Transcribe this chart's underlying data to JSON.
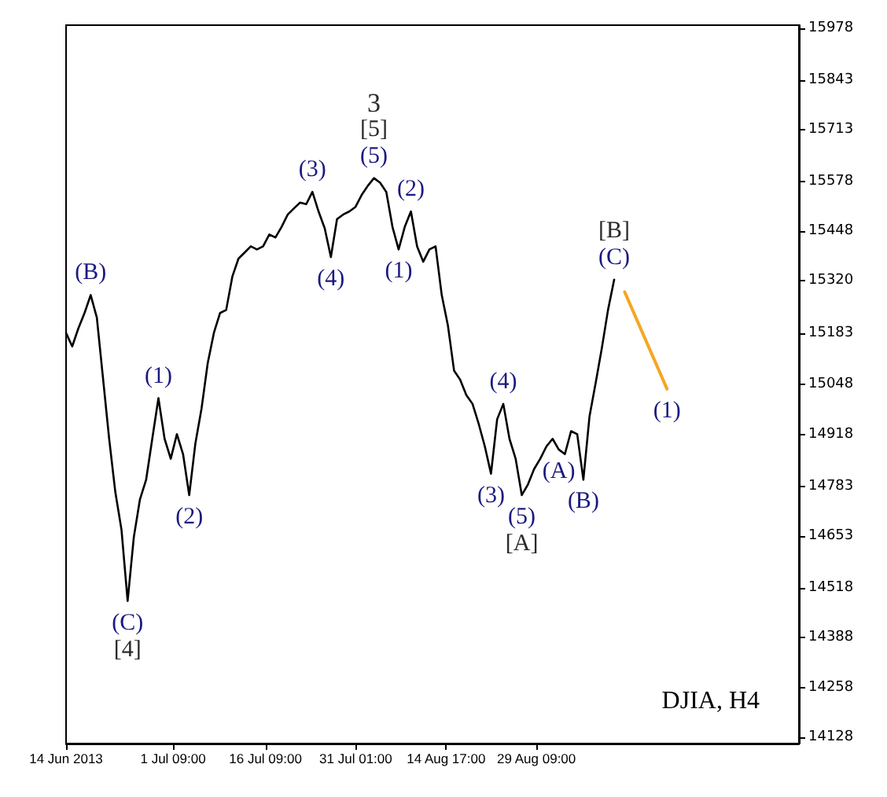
{
  "chart_data": {
    "type": "line",
    "annotations": [
      {
        "text": "(B)",
        "x": "2013-06-18",
        "y": 15282
      },
      {
        "text": "(C)",
        "x": "2013-06-24",
        "y": 14484
      },
      {
        "text": "[4]",
        "x": "2013-06-24",
        "y": 14484
      },
      {
        "text": "(1)",
        "x": "2013-06-29",
        "y": 15013
      },
      {
        "text": "(2)",
        "x": "2013-07-04",
        "y": 14760
      },
      {
        "text": "(3)",
        "x": "2013-07-24",
        "y": 15551
      },
      {
        "text": "(4)",
        "x": "2013-07-27",
        "y": 15381
      },
      {
        "text": "(5)",
        "x": "2013-08-03",
        "y": 15587
      },
      {
        "text": "[5]",
        "x": "2013-08-03",
        "y": 15587
      },
      {
        "text": "3",
        "x": "2013-08-03",
        "y": 15587
      },
      {
        "text": "(1)",
        "x": "2013-08-07",
        "y": 15401
      },
      {
        "text": "(2)",
        "x": "2013-08-09",
        "y": 15500
      },
      {
        "text": "(3)",
        "x": "2013-08-22",
        "y": 14816
      },
      {
        "text": "(4)",
        "x": "2013-08-24",
        "y": 14998
      },
      {
        "text": "(5)",
        "x": "2013-08-27",
        "y": 14760
      },
      {
        "text": "[A]",
        "x": "2013-08-27",
        "y": 14760
      },
      {
        "text": "(A)",
        "x": "2013-09-02",
        "y": 14879
      },
      {
        "text": "(B)",
        "x": "2013-09-06",
        "y": 14800
      },
      {
        "text": "(C)",
        "x": "2013-09-11",
        "y": 15322
      },
      {
        "text": "[B]",
        "x": "2013-09-11",
        "y": 15322
      },
      {
        "text": "(1)",
        "x": "2013-09-19T14:00",
        "y": 15037
      },
      "DJIA, H4"
    ],
    "x": [
      "2013-06-14",
      "2013-06-15",
      "2013-06-16",
      "2013-06-17",
      "2013-06-18",
      "2013-06-19",
      "2013-06-20",
      "2013-06-21",
      "2013-06-22",
      "2013-06-23",
      "2013-06-24",
      "2013-06-25",
      "2013-06-26",
      "2013-06-27",
      "2013-06-28",
      "2013-06-29",
      "2013-06-30",
      "2013-07-01",
      "2013-07-02",
      "2013-07-03",
      "2013-07-04",
      "2013-07-05",
      "2013-07-06",
      "2013-07-07",
      "2013-07-08",
      "2013-07-09",
      "2013-07-10",
      "2013-07-11",
      "2013-07-12",
      "2013-07-13",
      "2013-07-14",
      "2013-07-15",
      "2013-07-16",
      "2013-07-17",
      "2013-07-18",
      "2013-07-19",
      "2013-07-20",
      "2013-07-21",
      "2013-07-22",
      "2013-07-23",
      "2013-07-24",
      "2013-07-25",
      "2013-07-26",
      "2013-07-27",
      "2013-07-28",
      "2013-07-29",
      "2013-07-30",
      "2013-07-31",
      "2013-08-01",
      "2013-08-02",
      "2013-08-03",
      "2013-08-04",
      "2013-08-05",
      "2013-08-06",
      "2013-08-07",
      "2013-08-08",
      "2013-08-09",
      "2013-08-10",
      "2013-08-11",
      "2013-08-12",
      "2013-08-13",
      "2013-08-14",
      "2013-08-15",
      "2013-08-16",
      "2013-08-17",
      "2013-08-18",
      "2013-08-19",
      "2013-08-20",
      "2013-08-21",
      "2013-08-22",
      "2013-08-23",
      "2013-08-24",
      "2013-08-25",
      "2013-08-26",
      "2013-08-27",
      "2013-08-28",
      "2013-08-29",
      "2013-08-30",
      "2013-08-31",
      "2013-09-01",
      "2013-09-02",
      "2013-09-03",
      "2013-09-04",
      "2013-09-05",
      "2013-09-06",
      "2013-09-07",
      "2013-09-08",
      "2013-09-09",
      "2013-09-10",
      "2013-09-11"
    ],
    "series": [
      {
        "color": "#000000",
        "values": [
          15183,
          15148,
          15195,
          15235,
          15282,
          15223,
          15065,
          14907,
          14768,
          14670,
          14484,
          14650,
          14749,
          14800,
          14907,
          15013,
          14907,
          14855,
          14919,
          14867,
          14760,
          14895,
          14986,
          15104,
          15183,
          15235,
          15243,
          15330,
          15377,
          15393,
          15409,
          15401,
          15409,
          15440,
          15432,
          15460,
          15492,
          15508,
          15523,
          15519,
          15551,
          15500,
          15456,
          15381,
          15480,
          15492,
          15500,
          15512,
          15543,
          15567,
          15587,
          15575,
          15551,
          15460,
          15401,
          15460,
          15500,
          15409,
          15369,
          15401,
          15409,
          15282,
          15203,
          15085,
          15061,
          15021,
          14998,
          14946,
          14887,
          14816,
          14958,
          14998,
          14907,
          14855,
          14760,
          14788,
          14828,
          14855,
          14887,
          14907,
          14879,
          14867,
          14927,
          14919,
          14800,
          14966,
          15053,
          15144,
          15243,
          15322
        ]
      },
      {
        "color": "#f5a623",
        "x": [
          "2013-09-12T17:00",
          "2013-09-19T14:00"
        ],
        "values": [
          15290,
          15037
        ]
      }
    ],
    "xlim": [
      "2013-06-14",
      "2013-10-11"
    ],
    "xticks": [
      {
        "value": "2013-06-14",
        "label": "14 Jun 2013"
      },
      {
        "value": "2013-07-01T09:00",
        "label": "1 Jul 09:00"
      },
      {
        "value": "2013-07-16T09:00",
        "label": "16 Jul 09:00"
      },
      {
        "value": "2013-07-31T01:00",
        "label": "31 Jul 01:00"
      },
      {
        "value": "2013-08-14T17:00",
        "label": "14 Aug 17:00"
      },
      {
        "value": "2013-08-29T09:00",
        "label": "29 Aug 09:00"
      }
    ],
    "ylim": [
      14112,
      15986
    ],
    "yticks": [
      14128,
      14258,
      14388,
      14518,
      14653,
      14783,
      14918,
      15048,
      15183,
      15320,
      15448,
      15578,
      15713,
      15843,
      15978
    ],
    "grid": false,
    "marker": "none",
    "line_style": "solid"
  }
}
